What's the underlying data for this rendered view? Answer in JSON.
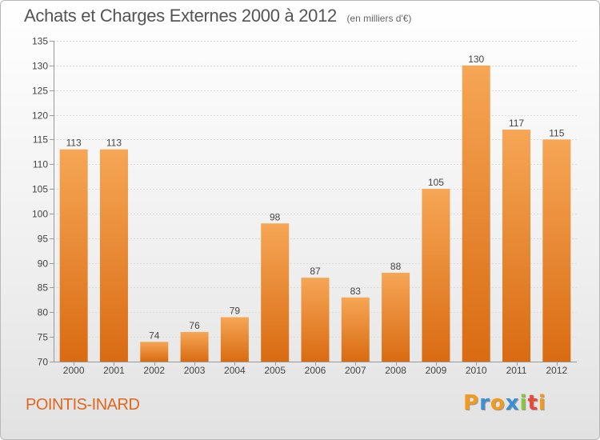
{
  "chart_data": {
    "type": "bar",
    "title": "Achats et Charges Externes 2000 à 2012",
    "subtitle": "(en milliers d'€)",
    "categories": [
      "2000",
      "2001",
      "2002",
      "2003",
      "2004",
      "2005",
      "2006",
      "2007",
      "2008",
      "2009",
      "2010",
      "2011",
      "2012"
    ],
    "values": [
      113,
      113,
      74,
      76,
      79,
      98,
      87,
      83,
      88,
      105,
      130,
      117,
      115
    ],
    "ylim": [
      70,
      135
    ],
    "yticks": [
      70,
      75,
      80,
      85,
      90,
      95,
      100,
      105,
      110,
      115,
      120,
      125,
      130,
      135
    ],
    "grid": true,
    "bar_color": "#f08a2e"
  },
  "commune": "POINTIS-INARD",
  "logo": {
    "letters": [
      {
        "ch": "P",
        "color": "#f39a1c"
      },
      {
        "ch": "r",
        "color": "#3a8fd6"
      },
      {
        "ch": "o",
        "color": "#f39a1c"
      },
      {
        "ch": "x",
        "color": "#3a8fd6"
      },
      {
        "ch": "i",
        "color": "#8cc63f"
      },
      {
        "ch": "t",
        "color": "#e8473c"
      },
      {
        "ch": "i",
        "color": "#f39a1c"
      }
    ]
  }
}
